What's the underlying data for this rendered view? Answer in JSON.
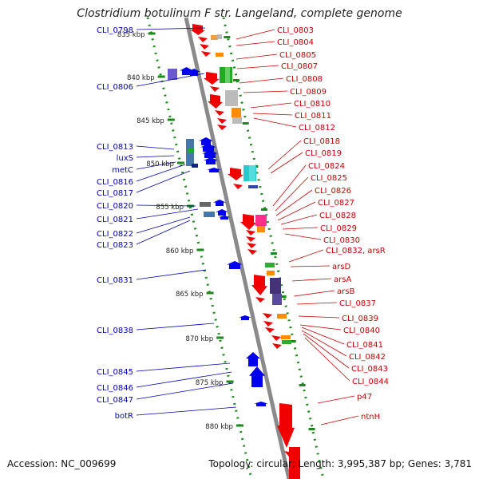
{
  "title": "Clostridium botulinum F str. Langeland, complete genome",
  "footer": {
    "accession": "Accession: NC_009699",
    "topology": "Topology: circular; Length: 3,995,387 bp; Genes: 3,781"
  },
  "colors": {
    "forward_label": "#cc0000",
    "reverse_label": "#0000bb",
    "backbone": "#8a8a8a",
    "tick": "#1a8a1a"
  },
  "scale_labels": [
    "835 kbp",
    "840 kbp",
    "845 kbp",
    "850 kbp",
    "855 kbp",
    "860 kbp",
    "865 kbp",
    "870 kbp",
    "875 kbp",
    "880 kbp"
  ],
  "left_labels": [
    "CLI_0798",
    "CLI_0806",
    "CLI_0813",
    "luxS",
    "metC",
    "CLI_0816",
    "CLI_0817",
    "CLI_0820",
    "CLI_0821",
    "CLI_0822",
    "CLI_0823",
    "CLI_0831",
    "CLI_0838",
    "CLI_0845",
    "CLI_0846",
    "CLI_0847",
    "botR"
  ],
  "right_labels": [
    "CLI_0803",
    "CLI_0804",
    "CLI_0805",
    "CLI_0807",
    "CLI_0808",
    "CLI_0809",
    "CLI_0810",
    "CLI_0811",
    "CLI_0812",
    "CLI_0818",
    "CLI_0819",
    "CLI_0824",
    "CLI_0825",
    "CLI_0826",
    "CLI_0827",
    "CLI_0828",
    "CLI_0829",
    "CLI_0830",
    "CLI_0832_arsR",
    "arsD",
    "arsA",
    "arsB",
    "CLI_0837",
    "CLI_0839",
    "CLI_0840",
    "CLI_0841",
    "CLI_0842",
    "CLI_0843",
    "CLI_0844",
    "p47",
    "ntnH"
  ]
}
